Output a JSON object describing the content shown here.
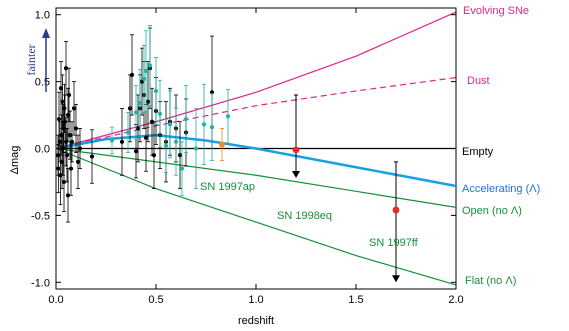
{
  "chart_data": {
    "type": "scatter",
    "xlabel": "redshift",
    "ylabel": "Δmag",
    "xlim": [
      0,
      2
    ],
    "ylim": [
      -1.05,
      1.05
    ],
    "xticks": [
      {
        "v": 0.0,
        "label": "0.0"
      },
      {
        "v": 0.5,
        "label": "0.5"
      },
      {
        "v": 1.0,
        "label": "1.0"
      },
      {
        "v": 1.5,
        "label": "1.5"
      },
      {
        "v": 2.0,
        "label": "2.0"
      }
    ],
    "yticks": [
      {
        "v": 1.0,
        "label": "1.0"
      },
      {
        "v": 0.5,
        "label": "0.5"
      },
      {
        "v": 0.0,
        "label": "0.0"
      },
      {
        "v": -0.5,
        "label": "-0.5"
      },
      {
        "v": -1.0,
        "label": "-1.0"
      }
    ],
    "fainter_label": "fainter",
    "colors": {
      "magenta": "#e0258f",
      "blue": "#1aa0e0",
      "green": "#178f3a",
      "black": "#000000",
      "teal": "#21b3a6",
      "orange": "#f08a1c",
      "red": "#e8282a",
      "arrow": "#2e3a8c"
    },
    "series": [
      {
        "name": "Evolving SNe",
        "style": "solid",
        "color": "#e0258f",
        "points": [
          [
            0,
            0
          ],
          [
            0.5,
            0.2
          ],
          [
            1,
            0.42
          ],
          [
            1.5,
            0.69
          ],
          [
            2,
            1.02
          ]
        ]
      },
      {
        "name": "Dust",
        "style": "dashed",
        "color": "#e0258f",
        "points": [
          [
            0,
            0
          ],
          [
            0.5,
            0.17
          ],
          [
            1,
            0.32
          ],
          [
            1.5,
            0.43
          ],
          [
            2,
            0.53
          ]
        ]
      },
      {
        "name": "Empty",
        "style": "solid",
        "color": "#000000",
        "points": [
          [
            0,
            0
          ],
          [
            2,
            0
          ]
        ]
      },
      {
        "name": "Accelerating (Λ)",
        "style": "solid-thick",
        "color": "#1aa0e0",
        "points": [
          [
            0,
            0
          ],
          [
            0.25,
            0.07
          ],
          [
            0.5,
            0.1
          ],
          [
            0.75,
            0.06
          ],
          [
            1,
            0
          ],
          [
            1.25,
            -0.07
          ],
          [
            1.5,
            -0.14
          ],
          [
            1.75,
            -0.21
          ],
          [
            2,
            -0.28
          ]
        ]
      },
      {
        "name": "Open (no Λ)",
        "style": "solid",
        "color": "#178f3a",
        "points": [
          [
            0,
            0
          ],
          [
            0.5,
            -0.1
          ],
          [
            1,
            -0.2
          ],
          [
            1.5,
            -0.32
          ],
          [
            2,
            -0.44
          ]
        ]
      },
      {
        "name": "Flat (no Λ)",
        "style": "solid",
        "color": "#178f3a",
        "points": [
          [
            0,
            0
          ],
          [
            0.5,
            -0.3
          ],
          [
            1,
            -0.55
          ],
          [
            1.5,
            -0.8
          ],
          [
            2,
            -1.02
          ]
        ]
      }
    ],
    "black_points": [
      [
        0.01,
        -0.05,
        0.15
      ],
      [
        0.012,
        -0.15,
        0.18
      ],
      [
        0.015,
        0.22,
        0.2
      ],
      [
        0.02,
        0.05,
        0.15
      ],
      [
        0.022,
        -0.2,
        0.22
      ],
      [
        0.025,
        0.45,
        0.2
      ],
      [
        0.028,
        0.1,
        0.15
      ],
      [
        0.03,
        -0.1,
        0.2
      ],
      [
        0.032,
        0.35,
        0.2
      ],
      [
        0.035,
        0.0,
        0.2
      ],
      [
        0.038,
        0.15,
        0.18
      ],
      [
        0.04,
        -0.25,
        0.22
      ],
      [
        0.042,
        0.3,
        0.18
      ],
      [
        0.045,
        0.2,
        0.2
      ],
      [
        0.05,
        0.05,
        0.18
      ],
      [
        0.055,
        -0.05,
        0.2
      ],
      [
        0.06,
        0.25,
        0.2
      ],
      [
        0.065,
        0.4,
        0.2
      ],
      [
        0.07,
        0.1,
        0.18
      ],
      [
        0.075,
        -0.15,
        0.2
      ],
      [
        0.08,
        0.05,
        0.15
      ],
      [
        0.09,
        0.3,
        0.2
      ],
      [
        0.1,
        0.15,
        0.18
      ],
      [
        0.11,
        -0.1,
        0.2
      ],
      [
        0.12,
        0.0,
        0.15
      ],
      [
        0.05,
        0.6,
        0.2
      ],
      [
        0.06,
        -0.35,
        0.2
      ],
      [
        0.18,
        -0.06,
        0.2
      ],
      [
        0.33,
        0.05,
        0.25
      ],
      [
        0.37,
        0.3,
        0.25
      ],
      [
        0.38,
        0.55,
        0.3
      ],
      [
        0.4,
        -0.02,
        0.2
      ],
      [
        0.41,
        0.15,
        0.25
      ],
      [
        0.42,
        0.3,
        0.25
      ],
      [
        0.43,
        0.5,
        0.25
      ],
      [
        0.44,
        0.4,
        0.25
      ],
      [
        0.45,
        0.08,
        0.25
      ],
      [
        0.46,
        0.35,
        0.3
      ],
      [
        0.47,
        0.6,
        0.3
      ],
      [
        0.48,
        0.2,
        0.25
      ],
      [
        0.49,
        -0.05,
        0.25
      ],
      [
        0.5,
        0.28,
        0.25
      ],
      [
        0.52,
        0.1,
        0.25
      ],
      [
        0.55,
        0.05,
        0.3
      ],
      [
        0.57,
        0.2,
        0.25
      ],
      [
        0.6,
        0.15,
        0.25
      ],
      [
        0.62,
        -0.05,
        0.25
      ],
      [
        0.65,
        0.12,
        0.25
      ],
      [
        0.78,
        0.42,
        0.42
      ]
    ],
    "teal_points": [
      [
        0.28,
        0.06,
        0.1
      ],
      [
        0.36,
        0.12,
        0.15
      ],
      [
        0.4,
        0.27,
        0.2
      ],
      [
        0.42,
        0.34,
        0.25
      ],
      [
        0.44,
        0.52,
        0.25
      ],
      [
        0.45,
        0.58,
        0.3
      ],
      [
        0.47,
        0.62,
        0.3
      ],
      [
        0.5,
        0.43,
        0.25
      ],
      [
        0.52,
        0.26,
        0.25
      ],
      [
        0.55,
        0.02,
        0.2
      ],
      [
        0.57,
        0.18,
        0.25
      ],
      [
        0.6,
        0.05,
        0.25
      ],
      [
        0.63,
        -0.15,
        0.2
      ],
      [
        0.65,
        0.22,
        0.25
      ],
      [
        0.7,
        0.0,
        0.3
      ],
      [
        0.74,
        0.18,
        0.3
      ],
      [
        0.78,
        0.16,
        0.25
      ],
      [
        0.86,
        0.24,
        0.2
      ]
    ],
    "orange_point": [
      0.83,
      0.03,
      0.12
    ],
    "red_points": [
      [
        1.2,
        -0.01
      ],
      [
        1.7,
        -0.46
      ]
    ],
    "limits": [
      {
        "x": 1.2,
        "y_top": 0.4,
        "y_bottom": -0.22
      },
      {
        "x": 1.7,
        "y_top": -0.1,
        "y_bottom": -1.0
      }
    ],
    "annotations": [
      "SN 1997ap",
      "SN 1998eq",
      "SN 1997ff"
    ]
  }
}
